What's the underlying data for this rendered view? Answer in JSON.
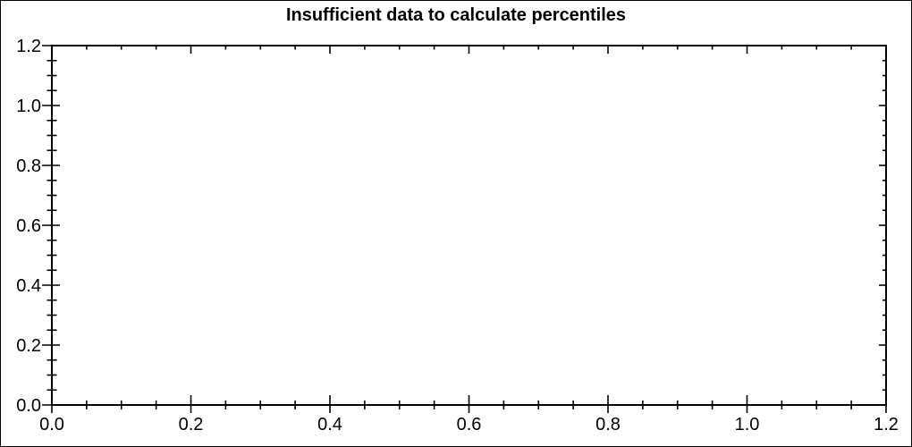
{
  "window": {
    "background_color": "#ffffff",
    "border_color": "#000000"
  },
  "chart_data": {
    "type": "scatter",
    "title": "Insufficient data to calculate percentiles",
    "series": [],
    "points": [],
    "xlabel": "",
    "ylabel": "",
    "xlim": [
      0.0,
      1.2
    ],
    "ylim": [
      0.0,
      1.2
    ],
    "x_major_step": 0.2,
    "x_minor_step": 0.05,
    "y_major_step": 0.2,
    "y_minor_step": 0.05,
    "x_ticklabels": [
      "0.0",
      "0.2",
      "0.4",
      "0.6",
      "0.8",
      "1.0",
      "1.2"
    ],
    "y_ticklabels": [
      "0.0",
      "0.2",
      "0.4",
      "0.6",
      "0.8",
      "1.0",
      "1.2"
    ],
    "grid": false,
    "frame": true,
    "legend": null,
    "axis_color": "#000000",
    "text_color": "#000000"
  }
}
